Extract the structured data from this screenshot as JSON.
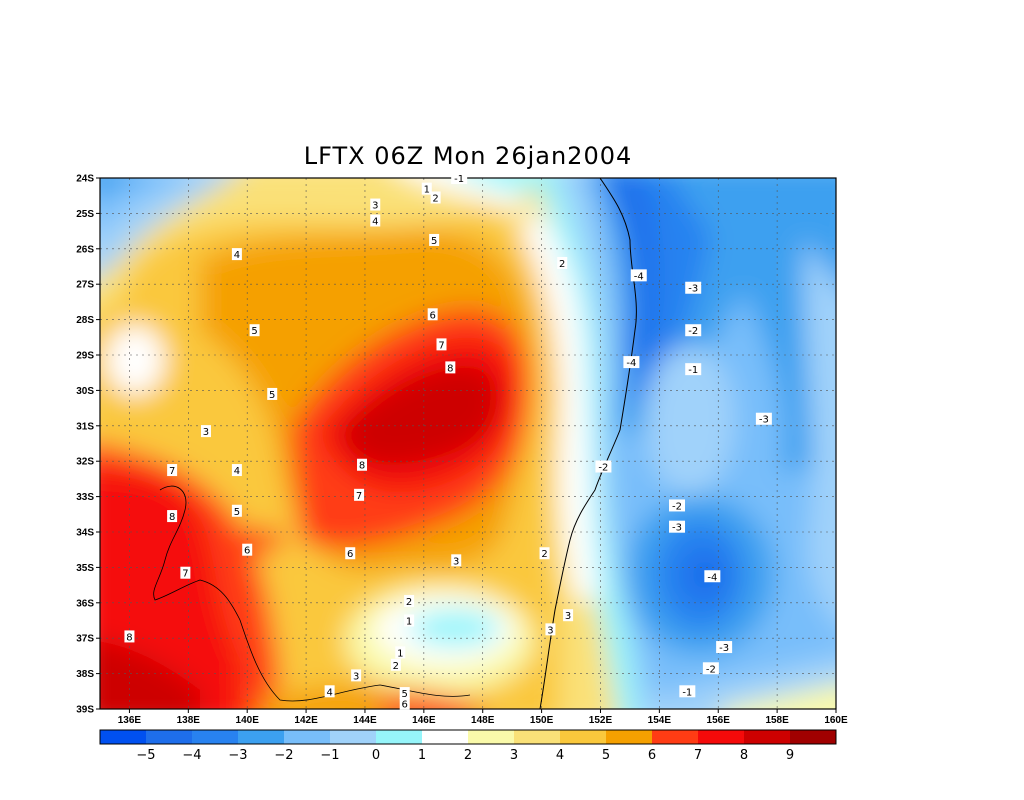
{
  "title": "LFTX 06Z Mon 26jan2004",
  "map": {
    "lat_ticks": [
      "24S",
      "25S",
      "26S",
      "27S",
      "28S",
      "29S",
      "30S",
      "31S",
      "32S",
      "33S",
      "34S",
      "35S",
      "36S",
      "37S",
      "38S",
      "39S"
    ],
    "lon_ticks": [
      "136E",
      "138E",
      "140E",
      "142E",
      "144E",
      "146E",
      "148E",
      "150E",
      "152E",
      "154E",
      "156E",
      "158E",
      "160E"
    ],
    "lat_range": [
      -39,
      -24
    ],
    "lon_range": [
      135,
      160
    ],
    "grid": true
  },
  "colorbar": {
    "labels": [
      "-5",
      "-4",
      "-3",
      "-2",
      "-1",
      "0",
      "1",
      "2",
      "3",
      "4",
      "5",
      "6",
      "7",
      "8",
      "9"
    ],
    "colors": [
      "#0050f0",
      "#1e6eeb",
      "#2882f0",
      "#3ca0f0",
      "#78befa",
      "#a0d2fa",
      "#96f5fa",
      "#ffffff",
      "#fafaaa",
      "#fae178",
      "#fac83c",
      "#f5a000",
      "#ff3c14",
      "#f50a0a",
      "#cd0000",
      "#a00000"
    ]
  },
  "contour_labels": [
    {
      "text": "-1",
      "lon": 147.2,
      "lat": -24.0
    },
    {
      "text": "1",
      "lon": 146.1,
      "lat": -24.3
    },
    {
      "text": "2",
      "lon": 146.4,
      "lat": -24.55
    },
    {
      "text": "3",
      "lon": 144.35,
      "lat": -24.75
    },
    {
      "text": "4",
      "lon": 144.35,
      "lat": -25.2
    },
    {
      "text": "5",
      "lon": 146.35,
      "lat": -25.75
    },
    {
      "text": "4",
      "lon": 139.65,
      "lat": -26.15
    },
    {
      "text": "2",
      "lon": 150.7,
      "lat": -26.4
    },
    {
      "text": "-4",
      "lon": 153.3,
      "lat": -26.75
    },
    {
      "text": "-3",
      "lon": 155.15,
      "lat": -27.1
    },
    {
      "text": "5",
      "lon": 140.25,
      "lat": -28.3
    },
    {
      "text": "6",
      "lon": 146.3,
      "lat": -27.85
    },
    {
      "text": "-2",
      "lon": 155.15,
      "lat": -28.3
    },
    {
      "text": "7",
      "lon": 146.6,
      "lat": -28.7
    },
    {
      "text": "-4",
      "lon": 153.05,
      "lat": -29.2
    },
    {
      "text": "8",
      "lon": 146.9,
      "lat": -29.35
    },
    {
      "text": "-1",
      "lon": 155.15,
      "lat": -29.4
    },
    {
      "text": "5",
      "lon": 140.85,
      "lat": -30.1
    },
    {
      "text": "-3",
      "lon": 157.55,
      "lat": -30.8
    },
    {
      "text": "3",
      "lon": 138.6,
      "lat": -31.15
    },
    {
      "text": "8",
      "lon": 143.9,
      "lat": -32.1
    },
    {
      "text": "-2",
      "lon": 152.1,
      "lat": -32.15
    },
    {
      "text": "4",
      "lon": 139.65,
      "lat": -32.25
    },
    {
      "text": "7",
      "lon": 137.45,
      "lat": -32.25
    },
    {
      "text": "7",
      "lon": 143.8,
      "lat": -32.95
    },
    {
      "text": "5",
      "lon": 139.65,
      "lat": -33.4
    },
    {
      "text": "8",
      "lon": 137.45,
      "lat": -33.55
    },
    {
      "text": "-2",
      "lon": 154.6,
      "lat": -33.25
    },
    {
      "text": "-3",
      "lon": 154.6,
      "lat": -33.85
    },
    {
      "text": "6",
      "lon": 140.0,
      "lat": -34.5
    },
    {
      "text": "6",
      "lon": 143.5,
      "lat": -34.6
    },
    {
      "text": "2",
      "lon": 150.1,
      "lat": -34.6
    },
    {
      "text": "3",
      "lon": 147.1,
      "lat": -34.8
    },
    {
      "text": "7",
      "lon": 137.9,
      "lat": -35.15
    },
    {
      "text": "-4",
      "lon": 155.8,
      "lat": -35.25
    },
    {
      "text": "2",
      "lon": 145.5,
      "lat": -35.95
    },
    {
      "text": "3",
      "lon": 150.9,
      "lat": -36.35
    },
    {
      "text": "1",
      "lon": 145.5,
      "lat": -36.5
    },
    {
      "text": "3",
      "lon": 150.3,
      "lat": -36.75
    },
    {
      "text": "8",
      "lon": 136.0,
      "lat": -36.95
    },
    {
      "text": "1",
      "lon": 145.2,
      "lat": -37.4
    },
    {
      "text": "-3",
      "lon": 156.2,
      "lat": -37.25
    },
    {
      "text": "2",
      "lon": 145.05,
      "lat": -37.75
    },
    {
      "text": "-2",
      "lon": 155.75,
      "lat": -37.85
    },
    {
      "text": "3",
      "lon": 143.7,
      "lat": -38.05
    },
    {
      "text": "4",
      "lon": 142.8,
      "lat": -38.5
    },
    {
      "text": "-1",
      "lon": 154.95,
      "lat": -38.5
    },
    {
      "text": "5",
      "lon": 145.35,
      "lat": -38.55
    },
    {
      "text": "6",
      "lon": 145.35,
      "lat": -38.85
    }
  ]
}
